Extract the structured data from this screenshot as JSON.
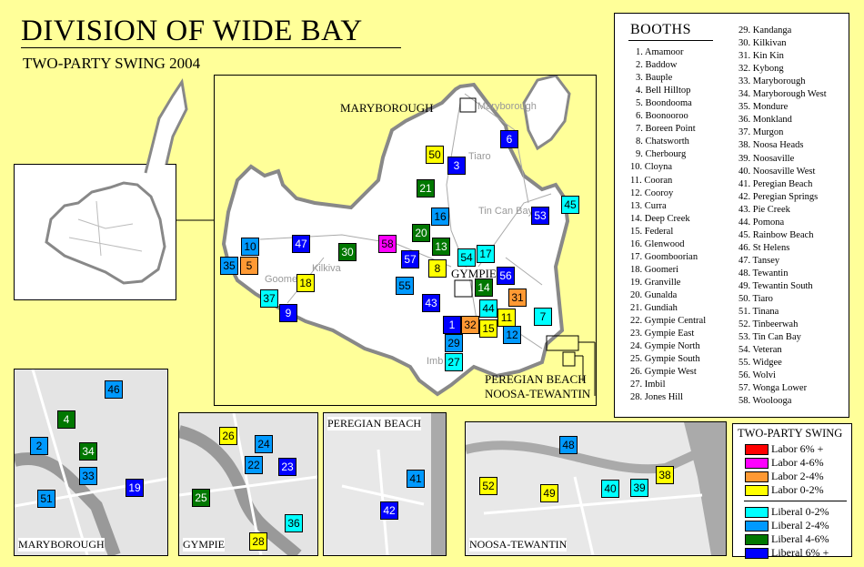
{
  "header": {
    "title": "DIVISION OF WIDE BAY",
    "subtitle": "TWO-PARTY SWING 2004"
  },
  "booth_list": {
    "heading": "BOOTHS",
    "items": [
      "1. Amamoor",
      "2. Baddow",
      "3. Bauple",
      "4. Bell Hilltop",
      "5. Boondooma",
      "6. Boonooroo",
      "7. Boreen Point",
      "8. Chatsworth",
      "9. Cherbourg",
      "10. Cloyna",
      "11. Cooran",
      "12. Cooroy",
      "13. Curra",
      "14. Deep Creek",
      "15. Federal",
      "16. Glenwood",
      "17. Goomboorian",
      "18. Goomeri",
      "19. Granville",
      "20. Gunalda",
      "21. Gundiah",
      "22. Gympie Central",
      "23. Gympie East",
      "24. Gympie North",
      "25. Gympie South",
      "26. Gympie West",
      "27. Imbil",
      "28. Jones Hill",
      "29. Kandanga",
      "30. Kilkivan",
      "31. Kin Kin",
      "32. Kybong",
      "33. Maryborough",
      "34. Maryborough West",
      "35. Mondure",
      "36. Monkland",
      "37. Murgon",
      "38. Noosa Heads",
      "39. Noosaville",
      "40. Noosaville West",
      "41. Peregian Beach",
      "42. Peregian Springs",
      "43. Pie Creek",
      "44. Pomona",
      "45. Rainbow Beach",
      "46. St Helens",
      "47. Tansey",
      "48. Tewantin",
      "49. Tewantin South",
      "50. Tiaro",
      "51. Tinana",
      "52. Tinbeerwah",
      "53. Tin Can Bay",
      "54. Veteran",
      "55. Widgee",
      "56. Wolvi",
      "57. Wonga Lower",
      "58. Woolooga"
    ]
  },
  "legend": {
    "title": "TWO-PARTY SWING",
    "items": [
      {
        "key": "L6",
        "label": "Labor 6% +",
        "color": "#ff0000"
      },
      {
        "key": "L4",
        "label": "Labor 4-6%",
        "color": "#ff00ff"
      },
      {
        "key": "L2",
        "label": "Labor 2-4%",
        "color": "#ff9933"
      },
      {
        "key": "L0",
        "label": "Labor 0-2%",
        "color": "#ffff00"
      },
      {
        "key": "C0",
        "label": "Liberal 0-2%",
        "color": "#00ffff"
      },
      {
        "key": "C2",
        "label": "Liberal 2-4%",
        "color": "#0099ff"
      },
      {
        "key": "C4",
        "label": "Liberal 4-6%",
        "color": "#007700"
      },
      {
        "key": "C6",
        "label": "Liberal 6% +",
        "color": "#0000ff"
      }
    ]
  },
  "map_labels": {
    "maryborough": "MARYBOROUGH",
    "gympie": "GYMPIE",
    "peregian": "PEREGIAN BEACH",
    "noosa": "NOOSA-TEWANTIN",
    "place_maryborough": "Maryborough",
    "place_tiaro": "Tiaro",
    "place_tincanbay": "Tin Can Bay",
    "place_kilkivan": "Kilkiva",
    "place_goomeri": "Goome",
    "place_imbil": "Imb"
  },
  "insets": {
    "maryborough": "MARYBOROUGH",
    "gympie": "GYMPIE",
    "peregian": "PEREGIAN BEACH",
    "noosa": "NOOSA-TEWANTIN"
  },
  "booth_swing": {
    "1": "C6",
    "2": "C2",
    "3": "C6",
    "4": "C4",
    "5": "L2",
    "6": "C6",
    "7": "C0",
    "8": "L0",
    "9": "C6",
    "10": "C2",
    "11": "L0",
    "12": "C2",
    "13": "C4",
    "14": "C4",
    "15": "L0",
    "16": "C2",
    "17": "C0",
    "18": "L0",
    "19": "C6",
    "20": "C4",
    "21": "C4",
    "22": "C2",
    "23": "C6",
    "24": "C2",
    "25": "C4",
    "26": "L0",
    "27": "C0",
    "28": "L0",
    "29": "C2",
    "30": "C4",
    "31": "L2",
    "32": "L2",
    "33": "C2",
    "34": "C4",
    "35": "C2",
    "36": "C0",
    "37": "C0",
    "38": "L0",
    "39": "C0",
    "40": "C0",
    "41": "C2",
    "42": "C6",
    "43": "C6",
    "44": "C0",
    "45": "C0",
    "46": "C2",
    "47": "C6",
    "48": "C2",
    "49": "L0",
    "50": "L0",
    "51": "C2",
    "52": "L0",
    "53": "C6",
    "54": "C0",
    "55": "C2",
    "56": "C6",
    "57": "C6",
    "58": "L4"
  }
}
